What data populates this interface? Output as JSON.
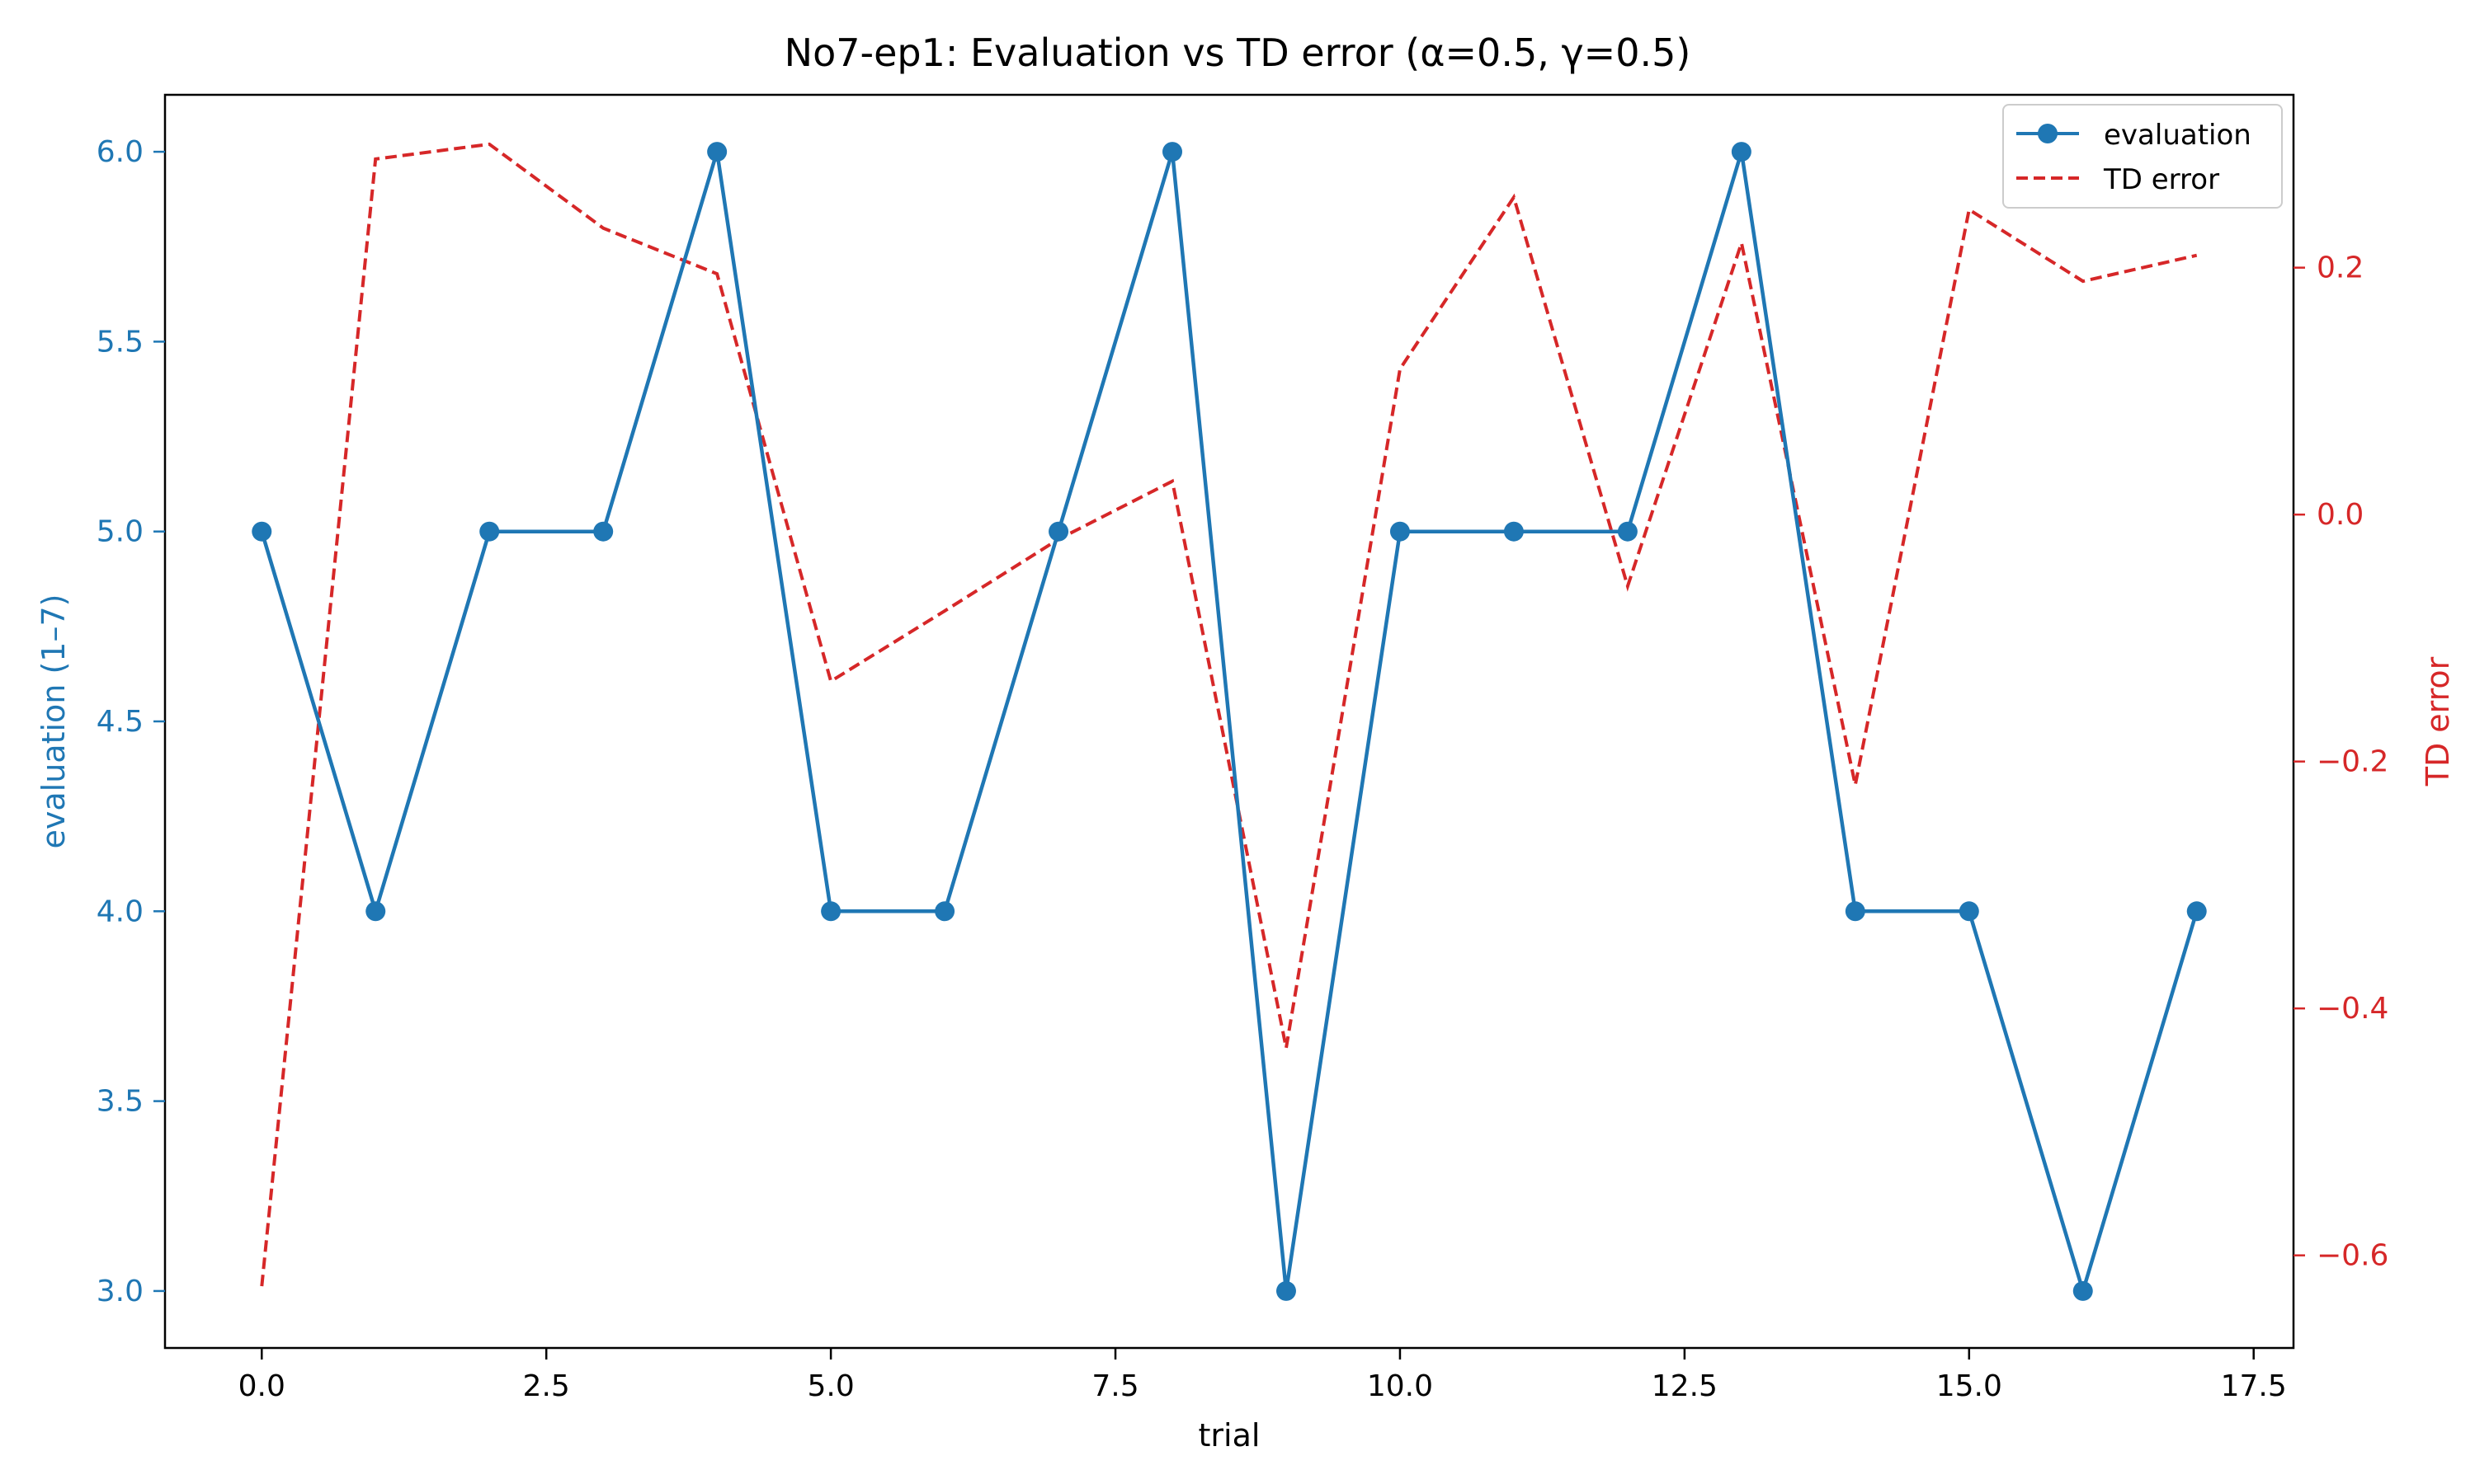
{
  "chart_data": {
    "type": "line",
    "title": "No7-ep1: Evaluation vs TD error (α=0.5, γ=0.5)",
    "xlabel": "trial",
    "ylabel_left": "evaluation (1–7)",
    "ylabel_right": "TD error",
    "xlim": [
      -0.85,
      17.85
    ],
    "ylim_left": [
      2.85,
      6.15
    ],
    "ylim_right": [
      -0.675,
      0.34
    ],
    "x_ticks": [
      0.0,
      2.5,
      5.0,
      7.5,
      10.0,
      12.5,
      15.0,
      17.5
    ],
    "x_tick_labels": [
      "0.0",
      "2.5",
      "5.0",
      "7.5",
      "10.0",
      "12.5",
      "15.0",
      "17.5"
    ],
    "y_left_ticks": [
      3.0,
      3.5,
      4.0,
      4.5,
      5.0,
      5.5,
      6.0
    ],
    "y_left_tick_labels": [
      "3.0",
      "3.5",
      "4.0",
      "4.5",
      "5.0",
      "5.5",
      "6.0"
    ],
    "y_right_ticks": [
      -0.6,
      -0.4,
      -0.2,
      0.0,
      0.2
    ],
    "y_right_tick_labels": [
      "−0.6",
      "−0.4",
      "−0.2",
      "0.0",
      "0.2"
    ],
    "grid": false,
    "legend_position": "top-right",
    "x": [
      0,
      1,
      2,
      3,
      4,
      5,
      6,
      7,
      8,
      9,
      10,
      11,
      12,
      13,
      14,
      15,
      16,
      17
    ],
    "series": [
      {
        "name": "evaluation",
        "axis": "left",
        "style": "solid-markers",
        "color": "#1f77b4",
        "values": [
          5,
          4,
          5,
          5,
          6,
          4,
          4,
          5,
          6,
          3,
          5,
          5,
          5,
          6,
          4,
          4,
          3,
          4
        ]
      },
      {
        "name": "TD error",
        "axis": "right",
        "style": "dashed",
        "color": "#d62728",
        "values": [
          -0.625,
          0.288,
          0.3,
          0.232,
          0.195,
          -0.135,
          -0.078,
          -0.02,
          0.027,
          -0.432,
          0.118,
          0.257,
          -0.058,
          0.22,
          -0.219,
          0.247,
          0.189,
          0.21
        ]
      }
    ]
  }
}
